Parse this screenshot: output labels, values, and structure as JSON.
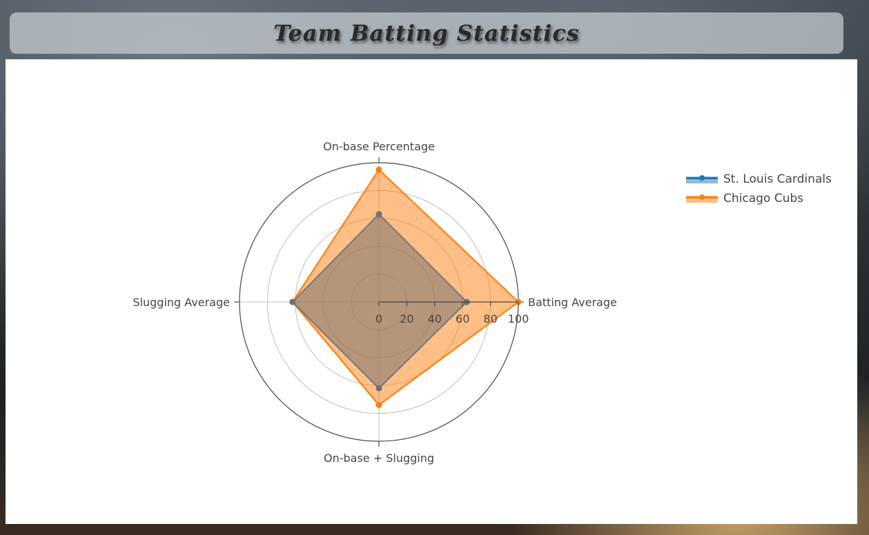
{
  "page": {
    "title": "Team Batting Statistics"
  },
  "colors": {
    "cardinals": "#1f77b4",
    "cubs": "#ff7f0e",
    "cubs_fill": "rgba(255,127,14,0.5)",
    "cardinals_fill": "rgba(110,110,110,0.5)"
  },
  "chart_data": {
    "type": "radar",
    "title": "Team Batting Statistics",
    "axes": [
      "Batting Average",
      "On-base Percentage",
      "Slugging Average",
      "On-base + Slugging"
    ],
    "radial_range": [
      0,
      100
    ],
    "radial_ticks": [
      "0",
      "20",
      "40",
      "60",
      "80",
      "100"
    ],
    "grid": true,
    "legend_position": "top-right",
    "series": [
      {
        "name": "St. Louis Cardinals",
        "values": [
          63,
          63,
          62,
          62
        ]
      },
      {
        "name": "Chicago Cubs",
        "values": [
          100,
          95,
          62,
          74
        ]
      }
    ]
  }
}
